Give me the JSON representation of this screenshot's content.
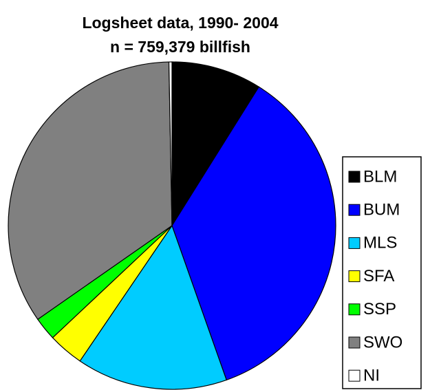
{
  "chart_data": {
    "type": "pie",
    "title": "Logsheet data, 1990- 2004",
    "subtitle": "n = 759,379 billfish",
    "categories": [
      "BLM",
      "BUM",
      "MLS",
      "SFA",
      "SSP",
      "SWO",
      "NI"
    ],
    "values": [
      8.9,
      35.7,
      14.9,
      3.5,
      2.3,
      34.4,
      0.3
    ],
    "colors": [
      "#000000",
      "#0000ff",
      "#00ccff",
      "#ffff00",
      "#00ff00",
      "#808080",
      "#ffffff"
    ]
  }
}
